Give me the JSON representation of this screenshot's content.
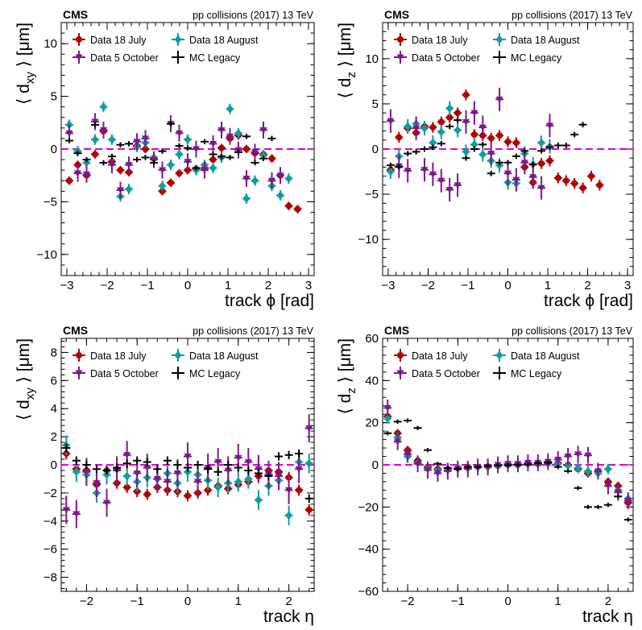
{
  "header": {
    "experiment": "CMS",
    "energy_text": "pp collisions (2017) 13 TeV"
  },
  "legend": {
    "entries": [
      {
        "key": "jul",
        "label": "Data 18 July",
        "color": "#b10000",
        "marker": "circle"
      },
      {
        "key": "aug",
        "label": "Data 18 August",
        "color": "#109d9d",
        "marker": "diamond"
      },
      {
        "key": "oct",
        "label": "Data 5 October",
        "color": "#7a1a8a",
        "marker": "triangle-down"
      },
      {
        "key": "mc",
        "label": "MC Legacy",
        "color": "#000000",
        "marker": "none"
      }
    ]
  },
  "reference_line_color": "#e000e0",
  "chart_data": [
    {
      "type": "scatter",
      "panel": "top-left",
      "xlabel": "track ϕ [rad]",
      "ylabel": "⟨ d_xy ⟩ [μm]",
      "xlim": [
        -3.14,
        3.14
      ],
      "ylim": [
        -12,
        12
      ],
      "xticks": [
        -3,
        -2,
        -1,
        0,
        1,
        2,
        3
      ],
      "yticks": [
        -10,
        -5,
        0,
        5,
        10
      ],
      "xerr": 0.1,
      "x": [
        -2.94,
        -2.73,
        -2.51,
        -2.3,
        -2.09,
        -1.88,
        -1.67,
        -1.46,
        -1.26,
        -1.05,
        -0.84,
        -0.63,
        -0.42,
        -0.21,
        0.0,
        0.21,
        0.42,
        0.63,
        0.84,
        1.05,
        1.26,
        1.46,
        1.67,
        1.88,
        2.09,
        2.3,
        2.51,
        2.73,
        2.94
      ],
      "series": [
        {
          "key": "jul",
          "yerr": 0.4,
          "values": [
            -3.0,
            -1.5,
            -2.5,
            -0.5,
            1.7,
            -1.2,
            -2.0,
            -2.2,
            0.3,
            0.0,
            -0.9,
            -4.0,
            -3.2,
            -2.3,
            -2.0,
            -1.9,
            -1.8,
            -1.0,
            0.1,
            1.0,
            1.3,
            0.0,
            -0.4,
            -0.5,
            -0.9,
            -2.5,
            -5.4,
            -5.7,
            null
          ]
        },
        {
          "key": "aug",
          "yerr": 0.5,
          "values": [
            2.3,
            -0.2,
            -1.3,
            0.9,
            4.0,
            0.9,
            -4.5,
            -3.8,
            0.2,
            0.6,
            -0.8,
            -3.5,
            -1.5,
            -0.5,
            0.9,
            -2.0,
            -1.5,
            -1.8,
            -0.8,
            3.8,
            1.5,
            -4.7,
            -3.0,
            -0.6,
            -3.5,
            -4.4,
            -2.8,
            null,
            null
          ]
        },
        {
          "key": "oct",
          "yerr": 0.8,
          "values": [
            1.5,
            -2.3,
            -2.4,
            2.6,
            1.8,
            -1.5,
            -3.9,
            -1.5,
            0.7,
            1.0,
            -1.0,
            -2.0,
            2.4,
            1.5,
            -1.2,
            0.0,
            -2.0,
            0.5,
            1.8,
            1.2,
            -0.1,
            -2.8,
            -0.3,
            1.8,
            -3.0,
            -2.5,
            null,
            null,
            null
          ]
        },
        {
          "key": "mc",
          "yerr": 0.25,
          "values": [
            0.8,
            -0.4,
            -1.0,
            2.3,
            -1.3,
            -0.7,
            0.4,
            0.5,
            -1.0,
            -0.8,
            -1.3,
            -0.2,
            2.4,
            0.3,
            0.1,
            -1.8,
            0.7,
            -0.5,
            -0.7,
            -0.8,
            -0.3,
            1.2,
            -1.3,
            -0.9,
            1.0,
            null,
            null,
            null,
            null
          ]
        }
      ]
    },
    {
      "type": "scatter",
      "panel": "top-right",
      "xlabel": "track ϕ [rad]",
      "ylabel": "⟨ d_z ⟩ [μm]",
      "xlim": [
        -3.14,
        3.14
      ],
      "ylim": [
        -14,
        14
      ],
      "xticks": [
        -3,
        -2,
        -1,
        0,
        1,
        2,
        3
      ],
      "yticks": [
        -10,
        -5,
        0,
        5,
        10
      ],
      "xerr": 0.1,
      "x": [
        -2.94,
        -2.73,
        -2.51,
        -2.3,
        -2.09,
        -1.88,
        -1.67,
        -1.46,
        -1.26,
        -1.05,
        -0.84,
        -0.63,
        -0.42,
        -0.21,
        0.0,
        0.21,
        0.42,
        0.63,
        0.84,
        1.05,
        1.26,
        1.46,
        1.67,
        1.88,
        2.09,
        2.3,
        2.51,
        2.73,
        2.94
      ],
      "series": [
        {
          "key": "jul",
          "yerr": 0.6,
          "values": [
            -2.3,
            1.3,
            2.3,
            1.8,
            2.5,
            2.4,
            3.0,
            3.5,
            4.0,
            6.0,
            1.6,
            1.5,
            1.2,
            1.5,
            0.8,
            0.7,
            -2.0,
            -3.7,
            -1.6,
            -1.3,
            -3.2,
            -3.5,
            -3.8,
            -4.3,
            -3.0,
            -4.0,
            null,
            null,
            null
          ]
        },
        {
          "key": "aug",
          "yerr": 0.8,
          "values": [
            -2.5,
            -0.8,
            2.5,
            2.8,
            2.3,
            0.7,
            1.9,
            4.5,
            2.1,
            -0.3,
            0.5,
            -0.6,
            -1.3,
            -1.8,
            -3.7,
            -3.8,
            -0.5,
            -1.7,
            0.7,
            0.3,
            null,
            null,
            null,
            null,
            null,
            null,
            null,
            null,
            null
          ]
        },
        {
          "key": "oct",
          "yerr": 1.3,
          "values": [
            3.1,
            -1.9,
            -2.4,
            2.3,
            -2.3,
            -2.8,
            -3.5,
            -4.5,
            -4.0,
            3.0,
            4.0,
            2.4,
            -0.5,
            5.5,
            -2.7,
            -3.4,
            -1.5,
            -3.1,
            -4.3,
            2.6,
            null,
            null,
            null,
            null,
            null,
            null,
            null,
            null,
            null
          ]
        },
        {
          "key": "mc",
          "yerr": 0.3,
          "values": [
            -1.8,
            -2.0,
            -0.5,
            -0.3,
            0.0,
            0.2,
            0.6,
            2.5,
            3.2,
            -1.0,
            0.0,
            0.5,
            -2.7,
            -1.5,
            -1.5,
            -0.8,
            -0.2,
            -1.7,
            -0.2,
            0.2,
            0.4,
            0.4,
            1.6,
            2.7,
            null,
            null,
            null,
            null,
            null
          ]
        }
      ]
    },
    {
      "type": "scatter",
      "panel": "bottom-left",
      "xlabel": "track η",
      "ylabel": "⟨ d_xy ⟩ [μm]",
      "xlim": [
        -2.5,
        2.5
      ],
      "ylim": [
        -9,
        9
      ],
      "xticks": [
        -2,
        -1,
        0,
        1,
        2
      ],
      "yticks": [
        -8,
        -6,
        -4,
        -2,
        0,
        2,
        4,
        6,
        8
      ],
      "xerr": 0.08,
      "x": [
        -2.4,
        -2.2,
        -2.0,
        -1.8,
        -1.6,
        -1.4,
        -1.2,
        -1.0,
        -0.8,
        -0.6,
        -0.4,
        -0.2,
        0.0,
        0.2,
        0.4,
        0.6,
        0.8,
        1.0,
        1.2,
        1.4,
        1.6,
        1.8,
        2.0,
        2.2,
        2.4
      ],
      "series": [
        {
          "key": "jul",
          "yerr": 0.4,
          "values": [
            0.8,
            -0.3,
            -0.4,
            -1.4,
            -0.4,
            -1.3,
            -1.6,
            -1.9,
            -2.1,
            -1.6,
            -1.8,
            -1.9,
            -2.2,
            -2.0,
            -1.8,
            -1.5,
            -1.7,
            -1.4,
            -1.2,
            -0.8,
            -0.4,
            -0.5,
            -0.9,
            -1.8,
            -3.2
          ]
        },
        {
          "key": "aug",
          "yerr": 0.7,
          "values": [
            1.4,
            -0.5,
            -0.7,
            -2.0,
            -0.7,
            -0.3,
            -0.8,
            -1.2,
            -0.9,
            -1.0,
            -0.6,
            -1.3,
            -0.5,
            -0.7,
            -1.1,
            -1.6,
            -1.3,
            -1.2,
            -1.0,
            -2.5,
            -1.5,
            -1.1,
            -3.6,
            0.2,
            0.1
          ]
        },
        {
          "key": "oct",
          "yerr": 1.0,
          "values": [
            -3.2,
            -3.5,
            -0.5,
            -1.3,
            -2.7,
            -0.4,
            0.7,
            -0.6,
            -0.2,
            -1.0,
            -1.2,
            -0.6,
            0.6,
            -1.2,
            -0.2,
            0.2,
            -0.4,
            0.5,
            0.2,
            -0.3,
            -0.7,
            -0.8,
            -1.8,
            -0.3,
            2.6
          ]
        },
        {
          "key": "mc",
          "yerr": 0.3,
          "values": [
            1.2,
            0.3,
            0.0,
            -0.3,
            -0.4,
            -0.2,
            0.1,
            0.3,
            0.2,
            -0.3,
            0.3,
            0.0,
            -0.2,
            0.0,
            -0.3,
            -0.5,
            0.0,
            -0.2,
            -0.4,
            -0.6,
            -0.8,
            0.6,
            0.7,
            0.8,
            -2.4
          ]
        }
      ]
    },
    {
      "type": "scatter",
      "panel": "bottom-right",
      "xlabel": "track η",
      "ylabel": "⟨ d_z ⟩ [μm]",
      "xlim": [
        -2.5,
        2.5
      ],
      "ylim": [
        -60,
        60
      ],
      "xticks": [
        -2,
        -1,
        0,
        1,
        2
      ],
      "yticks": [
        -60,
        -40,
        -20,
        0,
        20,
        40,
        60
      ],
      "xerr": 0.08,
      "x": [
        -2.4,
        -2.2,
        -2.0,
        -1.8,
        -1.6,
        -1.4,
        -1.2,
        -1.0,
        -0.8,
        -0.6,
        -0.4,
        -0.2,
        0.0,
        0.2,
        0.4,
        0.6,
        0.8,
        1.0,
        1.2,
        1.4,
        1.6,
        1.8,
        2.0,
        2.2,
        2.4
      ],
      "series": [
        {
          "key": "jul",
          "yerr": 2.0,
          "values": [
            23.0,
            15.0,
            7.0,
            2.0,
            -1.0,
            -2.0,
            -2.0,
            -1.5,
            -1.0,
            -1.0,
            -0.8,
            -0.5,
            0.0,
            0.0,
            0.5,
            0.5,
            0.8,
            0.8,
            0.0,
            -2.0,
            -4.0,
            -3.0,
            -8.0,
            -10.0,
            -18.0
          ]
        },
        {
          "key": "aug",
          "yerr": 2.5,
          "values": [
            22.0,
            13.0,
            4.0,
            1.0,
            -1.5,
            -2.5,
            -2.0,
            -1.5,
            -1.5,
            -1.0,
            -1.0,
            -0.5,
            0.0,
            0.3,
            0.5,
            0.8,
            1.0,
            0.5,
            -0.5,
            -1.5,
            -3.0,
            -4.0,
            -2.0,
            -12.0,
            -16.0
          ]
        },
        {
          "key": "oct",
          "yerr": 4.0,
          "values": [
            27.0,
            11.0,
            5.0,
            0.5,
            -2.5,
            -4.0,
            -3.0,
            -2.0,
            -2.0,
            -1.0,
            -1.0,
            0.0,
            0.5,
            0.5,
            1.0,
            1.0,
            1.5,
            2.5,
            4.0,
            5.0,
            4.5,
            -3.0,
            -10.0,
            -13.0,
            -17.0
          ]
        },
        {
          "key": "mc",
          "yerr": 1.0,
          "values": [
            15.0,
            20.5,
            21.0,
            17.5,
            7.0,
            0.5,
            -1.5,
            -2.0,
            -1.0,
            -1.0,
            -0.5,
            -0.3,
            -0.2,
            0.0,
            0.3,
            0.8,
            1.0,
            -1.0,
            -3.0,
            -11.0,
            -20.0,
            -20.0,
            -19.0,
            -15.0,
            -26.0
          ]
        }
      ]
    }
  ]
}
